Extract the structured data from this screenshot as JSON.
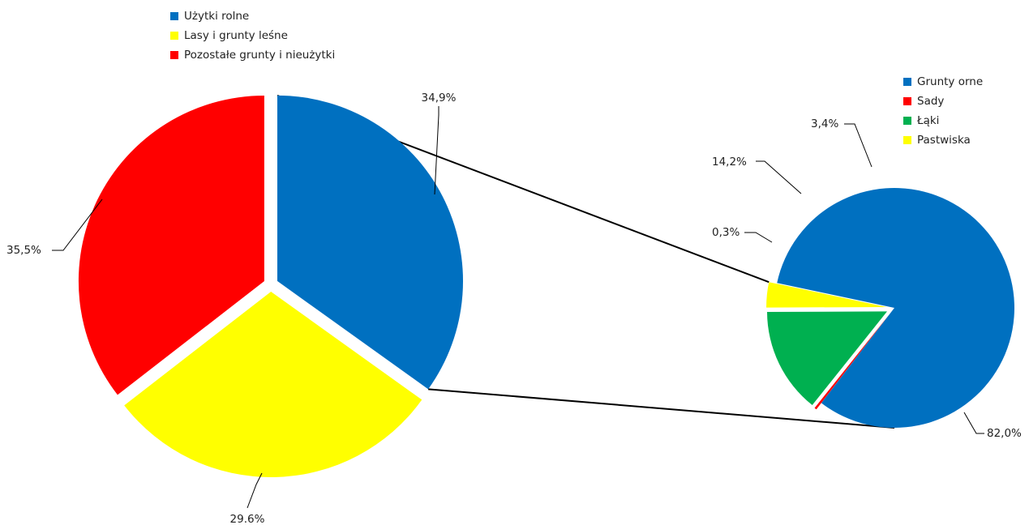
{
  "chart_data": [
    {
      "type": "pie",
      "categories": [
        "Użytki rolne",
        "Lasy i grunty leśne",
        "Pozostałe grunty i nieużytki"
      ],
      "values": [
        34.9,
        29.6,
        35.5
      ],
      "labels": [
        "34,9%",
        "29.6%",
        "35,5%"
      ],
      "colors": [
        "#0070c0",
        "#ffff00",
        "#ff0000"
      ],
      "legend_position": "top"
    },
    {
      "type": "pie",
      "categories": [
        "Grunty orne",
        "Sady",
        "Łąki",
        "Pastwiska"
      ],
      "values": [
        82.0,
        0.3,
        14.2,
        3.4
      ],
      "labels": [
        "82,0%",
        "0,3%",
        "14,2%",
        "3,4%"
      ],
      "colors": [
        "#0070c0",
        "#ff0000",
        "#00b050",
        "#ffff00"
      ],
      "legend_position": "right"
    }
  ]
}
